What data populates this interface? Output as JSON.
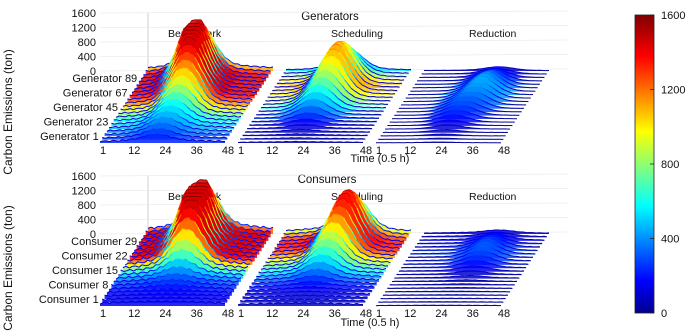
{
  "chart_data": [
    {
      "type": "surface",
      "title": "Generators",
      "zlabel": "Carbon Emissions (ton)",
      "xlabel": "Time (0.5 h)",
      "z_ticks": [
        "1600",
        "1200",
        "800",
        "400",
        "0"
      ],
      "zlim": [
        0,
        1600
      ],
      "row_ticks": [
        "Generator 89",
        "Generator 67",
        "Generator 45",
        "Generator 23",
        "Generator 1"
      ],
      "time_ticks": [
        "1",
        "12",
        "24",
        "36",
        "48"
      ],
      "panels": [
        {
          "name": "Benchmark",
          "peaks": [
            {
              "row": 0.85,
              "t": 0.42,
              "z": 1500
            },
            {
              "row": 0.55,
              "t": 0.5,
              "z": 900
            },
            {
              "row": 0.2,
              "t": 0.45,
              "z": 300
            }
          ],
          "base": 150
        },
        {
          "name": "Scheduling",
          "peaks": [
            {
              "row": 0.8,
              "t": 0.5,
              "z": 1050
            },
            {
              "row": 0.5,
              "t": 0.45,
              "z": 450
            }
          ],
          "base": 60
        },
        {
          "name": "Reduction",
          "peaks": [
            {
              "row": 0.7,
              "t": 0.6,
              "z": 420
            },
            {
              "row": 0.4,
              "t": 0.5,
              "z": 220
            }
          ],
          "base": 20
        }
      ]
    },
    {
      "type": "surface",
      "title": "Consumers",
      "zlabel": "Carbon Emissions (ton)",
      "xlabel": "Time (0.5 h)",
      "z_ticks": [
        "1600",
        "1200",
        "800",
        "400",
        "0"
      ],
      "zlim": [
        0,
        1600
      ],
      "row_ticks": [
        "Consumer 29",
        "Consumer 22",
        "Consumer 15",
        "Consumer 8",
        "Consumer 1"
      ],
      "time_ticks": [
        "1",
        "12",
        "24",
        "36",
        "48"
      ],
      "panels": [
        {
          "name": "Benchmark",
          "peaks": [
            {
              "row": 0.85,
              "t": 0.45,
              "z": 1500
            },
            {
              "row": 0.6,
              "t": 0.5,
              "z": 700
            }
          ],
          "base": 250
        },
        {
          "name": "Scheduling",
          "peaks": [
            {
              "row": 0.85,
              "t": 0.55,
              "z": 1250
            },
            {
              "row": 0.55,
              "t": 0.5,
              "z": 500
            }
          ],
          "base": 150
        },
        {
          "name": "Reduction",
          "peaks": [
            {
              "row": 0.7,
              "t": 0.6,
              "z": 300
            }
          ],
          "base": 40
        }
      ]
    }
  ],
  "colorbar": {
    "ticks": [
      "1600",
      "1200",
      "800",
      "400",
      "0"
    ],
    "range": [
      0,
      1600
    ],
    "colors": [
      "#00008f",
      "#0000ff",
      "#00ffff",
      "#ffff00",
      "#ff0000",
      "#800000"
    ]
  }
}
